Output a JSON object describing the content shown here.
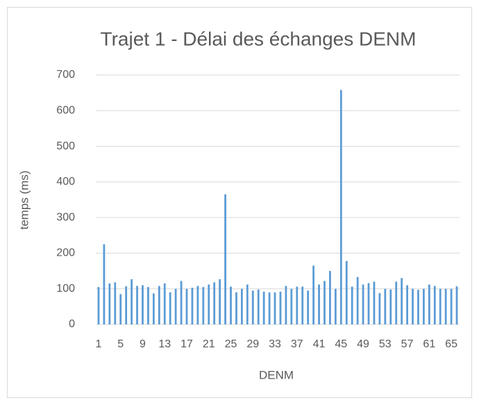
{
  "chart_data": {
    "type": "bar",
    "title": "Trajet 1 - Délai des échanges DENM",
    "x_label": "DENM",
    "y_label": "temps (ms)",
    "categories": [
      "1",
      null,
      null,
      null,
      "5",
      null,
      null,
      null,
      "9",
      null,
      null,
      null,
      "13",
      null,
      null,
      null,
      "17",
      null,
      null,
      null,
      "21",
      null,
      null,
      null,
      "25",
      null,
      null,
      null,
      "29",
      null,
      null,
      null,
      "33",
      null,
      null,
      null,
      "37",
      null,
      null,
      null,
      "41",
      null,
      null,
      null,
      "45",
      null,
      null,
      null,
      "49",
      null,
      null,
      null,
      "53",
      null,
      null,
      null,
      "57",
      null,
      null,
      null,
      "61",
      null,
      null,
      null,
      "65",
      null
    ],
    "values": [
      105,
      225,
      115,
      118,
      85,
      107,
      127,
      108,
      110,
      105,
      87,
      108,
      115,
      90,
      100,
      122,
      100,
      103,
      108,
      105,
      112,
      118,
      127,
      365,
      106,
      90,
      100,
      112,
      95,
      98,
      92,
      90,
      90,
      92,
      108,
      100,
      106,
      106,
      95,
      165,
      112,
      122,
      150,
      100,
      658,
      178,
      106,
      133,
      112,
      116,
      120,
      88,
      100,
      98,
      120,
      130,
      110,
      100,
      97,
      100,
      112,
      108,
      100,
      100,
      100,
      107
    ],
    "color": "#5b9bd5",
    "ylim": [
      0,
      700
    ],
    "yticks": [
      0,
      100,
      200,
      300,
      400,
      500,
      600,
      700
    ],
    "grid": true
  }
}
